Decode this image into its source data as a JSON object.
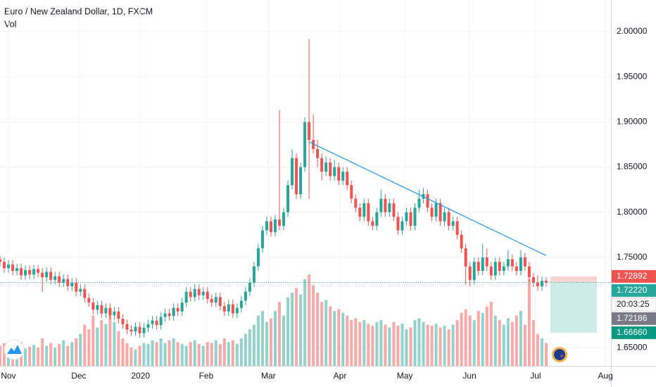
{
  "chart_data": {
    "type": "candlestick",
    "title": "Euro / New Zealand Dollar, 1D, FXCM",
    "indicator": "Vol",
    "up_color": "#26a69a",
    "down_color": "#ef5350",
    "ylim": [
      1.6298,
      2.0351
    ],
    "yticks": [
      {
        "value": 1.65,
        "label": "1.65000"
      },
      {
        "value": 1.75,
        "label": "1.75000"
      },
      {
        "value": 1.8,
        "label": "1.80000"
      },
      {
        "value": 1.85,
        "label": "1.85000"
      },
      {
        "value": 1.9,
        "label": "1.90000"
      },
      {
        "value": 1.95,
        "label": "1.95000"
      },
      {
        "value": 2.0,
        "label": "2.00000"
      }
    ],
    "xlim": [
      0,
      144.3
    ],
    "xticks": [
      {
        "value": 2,
        "label": "Nov"
      },
      {
        "value": 18.6,
        "label": "Dec"
      },
      {
        "value": 33.2,
        "label": "2020"
      },
      {
        "value": 48.7,
        "label": "Feb"
      },
      {
        "value": 63.4,
        "label": "Mar"
      },
      {
        "value": 80.3,
        "label": "Apr"
      },
      {
        "value": 95.6,
        "label": "May"
      },
      {
        "value": 110.9,
        "label": "Jun"
      },
      {
        "value": 126.5,
        "label": "Jul"
      },
      {
        "value": 143,
        "label": "Aug"
      }
    ],
    "grid": true,
    "ohlc": [
      [
        1.748,
        1.752,
        1.74,
        1.745
      ],
      [
        1.745,
        1.75,
        1.733,
        1.738
      ],
      [
        1.738,
        1.747,
        1.733,
        1.742
      ],
      [
        1.742,
        1.747,
        1.73,
        1.735
      ],
      [
        1.735,
        1.743,
        1.73,
        1.738
      ],
      [
        1.738,
        1.743,
        1.725,
        1.73
      ],
      [
        1.73,
        1.741,
        1.725,
        1.736
      ],
      [
        1.736,
        1.741,
        1.726,
        1.731
      ],
      [
        1.731,
        1.742,
        1.726,
        1.737
      ],
      [
        1.737,
        1.742,
        1.728,
        1.733
      ],
      [
        1.733,
        1.738,
        1.712,
        1.728
      ],
      [
        1.728,
        1.739,
        1.723,
        1.734
      ],
      [
        1.734,
        1.739,
        1.72,
        1.725
      ],
      [
        1.725,
        1.734,
        1.72,
        1.729
      ],
      [
        1.729,
        1.734,
        1.717,
        1.722
      ],
      [
        1.722,
        1.731,
        1.717,
        1.726
      ],
      [
        1.726,
        1.731,
        1.713,
        1.718
      ],
      [
        1.718,
        1.727,
        1.713,
        1.722
      ],
      [
        1.722,
        1.727,
        1.707,
        1.712
      ],
      [
        1.712,
        1.72,
        1.707,
        1.715
      ],
      [
        1.715,
        1.72,
        1.7,
        1.705
      ],
      [
        1.705,
        1.71,
        1.695,
        1.7
      ],
      [
        1.7,
        1.705,
        1.687,
        1.692
      ],
      [
        1.692,
        1.702,
        1.687,
        1.697
      ],
      [
        1.697,
        1.702,
        1.683,
        1.688
      ],
      [
        1.688,
        1.699,
        1.683,
        1.694
      ],
      [
        1.694,
        1.699,
        1.681,
        1.686
      ],
      [
        1.686,
        1.695,
        1.681,
        1.69
      ],
      [
        1.69,
        1.695,
        1.677,
        1.682
      ],
      [
        1.682,
        1.687,
        1.671,
        1.676
      ],
      [
        1.676,
        1.681,
        1.665,
        1.67
      ],
      [
        1.67,
        1.675,
        1.663,
        1.668
      ],
      [
        1.668,
        1.678,
        1.663,
        1.673
      ],
      [
        1.673,
        1.678,
        1.661,
        1.666
      ],
      [
        1.666,
        1.677,
        1.661,
        1.672
      ],
      [
        1.672,
        1.681,
        1.667,
        1.676
      ],
      [
        1.676,
        1.685,
        1.671,
        1.68
      ],
      [
        1.68,
        1.685,
        1.67,
        1.675
      ],
      [
        1.675,
        1.689,
        1.67,
        1.684
      ],
      [
        1.684,
        1.693,
        1.679,
        1.688
      ],
      [
        1.688,
        1.693,
        1.68,
        1.685
      ],
      [
        1.685,
        1.699,
        1.68,
        1.694
      ],
      [
        1.694,
        1.699,
        1.685,
        1.69
      ],
      [
        1.69,
        1.705,
        1.685,
        1.7
      ],
      [
        1.7,
        1.717,
        1.695,
        1.712
      ],
      [
        1.712,
        1.717,
        1.701,
        1.706
      ],
      [
        1.706,
        1.72,
        1.701,
        1.715
      ],
      [
        1.715,
        1.72,
        1.703,
        1.708
      ],
      [
        1.708,
        1.717,
        1.703,
        1.712
      ],
      [
        1.712,
        1.717,
        1.699,
        1.704
      ],
      [
        1.704,
        1.709,
        1.695,
        1.7
      ],
      [
        1.7,
        1.711,
        1.695,
        1.706
      ],
      [
        1.706,
        1.711,
        1.691,
        1.696
      ],
      [
        1.696,
        1.701,
        1.685,
        1.69
      ],
      [
        1.69,
        1.703,
        1.685,
        1.698
      ],
      [
        1.698,
        1.703,
        1.683,
        1.688
      ],
      [
        1.688,
        1.699,
        1.683,
        1.694
      ],
      [
        1.694,
        1.707,
        1.689,
        1.702
      ],
      [
        1.702,
        1.717,
        1.697,
        1.712
      ],
      [
        1.712,
        1.727,
        1.707,
        1.722
      ],
      [
        1.722,
        1.745,
        1.717,
        1.74
      ],
      [
        1.74,
        1.765,
        1.735,
        1.76
      ],
      [
        1.76,
        1.785,
        1.755,
        1.78
      ],
      [
        1.78,
        1.795,
        1.775,
        1.79
      ],
      [
        1.79,
        1.795,
        1.773,
        1.778
      ],
      [
        1.778,
        1.797,
        1.773,
        1.792
      ],
      [
        1.792,
        1.913,
        1.78,
        1.785
      ],
      [
        1.785,
        1.805,
        1.78,
        1.8
      ],
      [
        1.8,
        1.835,
        1.795,
        1.83
      ],
      [
        1.83,
        1.87,
        1.825,
        1.86
      ],
      [
        1.86,
        1.865,
        1.815,
        1.82
      ],
      [
        1.82,
        1.855,
        1.815,
        1.85
      ],
      [
        1.85,
        1.905,
        1.845,
        1.9
      ],
      [
        1.9,
        1.992,
        1.815,
        1.88
      ],
      [
        1.88,
        1.908,
        1.865,
        1.87
      ],
      [
        1.87,
        1.88,
        1.85,
        1.86
      ],
      [
        1.86,
        1.865,
        1.835,
        1.845
      ],
      [
        1.845,
        1.862,
        1.84,
        1.855
      ],
      [
        1.855,
        1.86,
        1.835,
        1.84
      ],
      [
        1.84,
        1.858,
        1.835,
        1.85
      ],
      [
        1.85,
        1.855,
        1.83,
        1.835
      ],
      [
        1.835,
        1.85,
        1.83,
        1.845
      ],
      [
        1.845,
        1.85,
        1.825,
        1.83
      ],
      [
        1.83,
        1.835,
        1.81,
        1.815
      ],
      [
        1.815,
        1.82,
        1.8,
        1.805
      ],
      [
        1.805,
        1.81,
        1.79,
        1.795
      ],
      [
        1.795,
        1.815,
        1.79,
        1.81
      ],
      [
        1.81,
        1.815,
        1.785,
        1.79
      ],
      [
        1.79,
        1.795,
        1.78,
        1.785
      ],
      [
        1.785,
        1.805,
        1.78,
        1.8
      ],
      [
        1.8,
        1.825,
        1.795,
        1.815
      ],
      [
        1.815,
        1.82,
        1.795,
        1.8
      ],
      [
        1.8,
        1.815,
        1.795,
        1.81
      ],
      [
        1.81,
        1.815,
        1.79,
        1.795
      ],
      [
        1.795,
        1.8,
        1.775,
        1.78
      ],
      [
        1.78,
        1.795,
        1.775,
        1.79
      ],
      [
        1.79,
        1.805,
        1.785,
        1.8
      ],
      [
        1.8,
        1.805,
        1.78,
        1.785
      ],
      [
        1.785,
        1.81,
        1.78,
        1.805
      ],
      [
        1.805,
        1.825,
        1.8,
        1.815
      ],
      [
        1.815,
        1.827,
        1.81,
        1.82
      ],
      [
        1.82,
        1.825,
        1.8,
        1.805
      ],
      [
        1.805,
        1.81,
        1.79,
        1.795
      ],
      [
        1.795,
        1.815,
        1.79,
        1.81
      ],
      [
        1.81,
        1.815,
        1.785,
        1.79
      ],
      [
        1.79,
        1.805,
        1.785,
        1.8
      ],
      [
        1.8,
        1.805,
        1.78,
        1.785
      ],
      [
        1.785,
        1.795,
        1.78,
        1.79
      ],
      [
        1.79,
        1.795,
        1.77,
        1.775
      ],
      [
        1.775,
        1.78,
        1.755,
        1.76
      ],
      [
        1.76,
        1.765,
        1.72,
        1.74
      ],
      [
        1.74,
        1.745,
        1.718,
        1.725
      ],
      [
        1.725,
        1.75,
        1.72,
        1.745
      ],
      [
        1.745,
        1.75,
        1.73,
        1.735
      ],
      [
        1.735,
        1.765,
        1.73,
        1.75
      ],
      [
        1.75,
        1.76,
        1.735,
        1.74
      ],
      [
        1.74,
        1.745,
        1.725,
        1.73
      ],
      [
        1.73,
        1.75,
        1.725,
        1.745
      ],
      [
        1.745,
        1.75,
        1.73,
        1.735
      ],
      [
        1.735,
        1.745,
        1.73,
        1.74
      ],
      [
        1.74,
        1.758,
        1.735,
        1.748
      ],
      [
        1.748,
        1.753,
        1.735,
        1.74
      ],
      [
        1.74,
        1.745,
        1.73,
        1.735
      ],
      [
        1.735,
        1.758,
        1.73,
        1.75
      ],
      [
        1.75,
        1.755,
        1.735,
        1.74
      ],
      [
        1.74,
        1.745,
        1.723,
        1.728
      ],
      [
        1.728,
        1.733,
        1.717,
        1.722
      ],
      [
        1.722,
        1.73,
        1.713,
        1.718
      ],
      [
        1.718,
        1.729,
        1.713,
        1.724
      ],
      [
        1.724,
        1.728,
        1.718,
        1.722
      ]
    ],
    "volume": [
      22,
      25,
      18,
      20,
      24,
      26,
      19,
      21,
      23,
      20,
      30,
      22,
      25,
      20,
      24,
      28,
      22,
      26,
      30,
      35,
      45,
      40,
      55,
      42,
      50,
      46,
      60,
      48,
      38,
      30,
      25,
      20,
      18,
      22,
      25,
      24,
      28,
      26,
      30,
      25,
      28,
      30,
      26,
      24,
      22,
      26,
      28,
      24,
      22,
      26,
      25,
      28,
      24,
      30,
      26,
      28,
      24,
      30,
      35,
      40,
      45,
      55,
      60,
      48,
      52,
      60,
      70,
      55,
      75,
      80,
      85,
      78,
      95,
      100,
      88,
      80,
      70,
      72,
      65,
      60,
      62,
      58,
      55,
      50,
      52,
      48,
      50,
      46,
      44,
      48,
      50,
      45,
      42,
      48,
      44,
      46,
      40,
      42,
      50,
      52,
      48,
      45,
      44,
      46,
      42,
      44,
      40,
      45,
      50,
      58,
      62,
      55,
      50,
      60,
      58,
      65,
      70,
      55,
      50,
      45,
      52,
      48,
      55,
      60,
      45,
      95,
      50,
      35,
      30,
      25
    ],
    "trendline": {
      "from_bar": 73,
      "from_price": 1.878,
      "to_bar": 129,
      "to_price": 1.752,
      "color": "#2196f3"
    },
    "position": {
      "stop": 1.72892,
      "entry": 1.7222,
      "target": 1.6666
    },
    "markers": [
      {
        "value": 1.72892,
        "label": "1.72892",
        "color": "#ef5350"
      },
      {
        "value": 1.7222,
        "label": "1.72220",
        "color": "#26a69a"
      },
      {
        "value": 1.72186,
        "label": "1.72186",
        "color": "#787b86"
      },
      {
        "value": 1.6666,
        "label": "1.66660",
        "color": "#089981"
      }
    ],
    "countdown": "20:03:25"
  }
}
